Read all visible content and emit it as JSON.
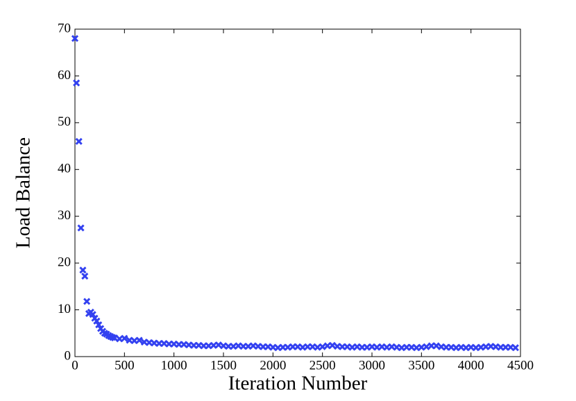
{
  "chart_data": {
    "type": "scatter",
    "xlabel": "Iteration Number",
    "ylabel": "Load Balance",
    "color": "#3341f0",
    "marker": "x",
    "xlim": [
      0,
      4500
    ],
    "xticks": [
      0,
      500,
      1000,
      1500,
      2000,
      2500,
      3000,
      3500,
      4000,
      4500
    ],
    "ylim": [
      0,
      70
    ],
    "yticks": [
      0,
      10,
      20,
      30,
      40,
      50,
      60,
      70
    ],
    "x": [
      0,
      15,
      40,
      60,
      80,
      100,
      120,
      140,
      160,
      180,
      200,
      220,
      240,
      260,
      280,
      300,
      320,
      340,
      360,
      380,
      400,
      450,
      500,
      550,
      600,
      650,
      700,
      750,
      800,
      850,
      900,
      950,
      1000,
      1050,
      1100,
      1150,
      1200,
      1250,
      1300,
      1350,
      1400,
      1450,
      1500,
      1550,
      1600,
      1650,
      1700,
      1750,
      1800,
      1850,
      1900,
      1950,
      2000,
      2050,
      2100,
      2150,
      2200,
      2250,
      2300,
      2350,
      2400,
      2450,
      2500,
      2550,
      2600,
      2650,
      2700,
      2750,
      2800,
      2850,
      2900,
      2950,
      3000,
      3050,
      3100,
      3150,
      3200,
      3250,
      3300,
      3350,
      3400,
      3450,
      3500,
      3550,
      3600,
      3650,
      3700,
      3750,
      3800,
      3850,
      3900,
      3950,
      4000,
      4050,
      4100,
      4150,
      4200,
      4250,
      4300,
      4350,
      4400,
      4450
    ],
    "values": [
      68,
      58.5,
      46,
      27.5,
      18.5,
      17.2,
      11.8,
      9.2,
      9.5,
      9.0,
      8.2,
      7.6,
      6.8,
      6.0,
      5.4,
      5.0,
      4.8,
      4.5,
      4.3,
      4.1,
      4.0,
      3.8,
      3.9,
      3.5,
      3.4,
      3.5,
      3.1,
      3.0,
      2.9,
      2.8,
      2.8,
      2.7,
      2.7,
      2.6,
      2.6,
      2.5,
      2.4,
      2.4,
      2.3,
      2.3,
      2.4,
      2.5,
      2.3,
      2.2,
      2.2,
      2.3,
      2.2,
      2.2,
      2.3,
      2.2,
      2.1,
      2.1,
      2.0,
      1.9,
      2.0,
      2.0,
      2.1,
      2.1,
      2.0,
      2.1,
      2.1,
      2.0,
      2.1,
      2.3,
      2.4,
      2.2,
      2.1,
      2.1,
      2.0,
      2.1,
      2.0,
      2.0,
      2.1,
      2.0,
      2.1,
      2.0,
      2.1,
      2.0,
      1.9,
      2.0,
      2.0,
      1.9,
      2.0,
      2.1,
      2.3,
      2.3,
      2.1,
      2.0,
      2.0,
      1.9,
      2.0,
      1.9,
      2.0,
      1.9,
      2.0,
      2.1,
      2.2,
      2.1,
      2.0,
      2.0,
      2.0,
      1.9
    ]
  }
}
